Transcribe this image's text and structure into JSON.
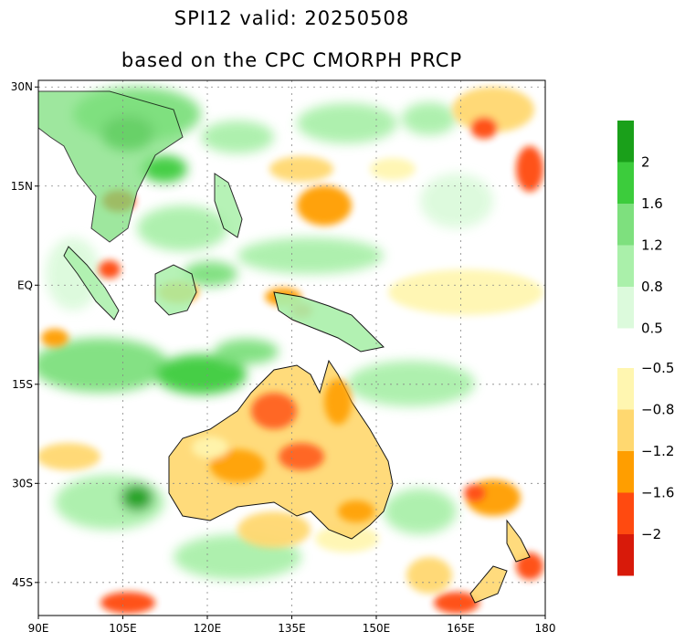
{
  "title": {
    "line1": "SPI12  valid: 20250508",
    "line2": "based on the CPC CMORPH PRCP"
  },
  "map": {
    "lon_range": [
      90,
      180
    ],
    "lat_range": [
      -50,
      31
    ],
    "lon_ticks": [
      {
        "value": 90,
        "label": "90E"
      },
      {
        "value": 105,
        "label": "105E"
      },
      {
        "value": 120,
        "label": "120E"
      },
      {
        "value": 135,
        "label": "135E"
      },
      {
        "value": 150,
        "label": "150E"
      },
      {
        "value": 165,
        "label": "165E"
      },
      {
        "value": 180,
        "label": "180"
      }
    ],
    "lat_ticks": [
      {
        "value": 30,
        "label": "30N"
      },
      {
        "value": 15,
        "label": "15N"
      },
      {
        "value": 0,
        "label": "EQ"
      },
      {
        "value": -15,
        "label": "15S"
      },
      {
        "value": -30,
        "label": "30S"
      },
      {
        "value": -45,
        "label": "45S"
      }
    ],
    "grid": true
  },
  "legend": {
    "wet": {
      "colors": [
        "#1aa01a",
        "#3ccc3c",
        "#7ee07e",
        "#aaf0aa",
        "#dcfadc"
      ],
      "labels": [
        "2",
        "1.6",
        "1.2",
        "0.8",
        "0.5"
      ]
    },
    "dry": {
      "colors": [
        "#fff6b0",
        "#ffd870",
        "#ff9e00",
        "#ff4a10",
        "#d81a0a"
      ],
      "labels": [
        "−0.5",
        "−0.8",
        "−1.2",
        "−1.6",
        "−2"
      ]
    }
  }
}
